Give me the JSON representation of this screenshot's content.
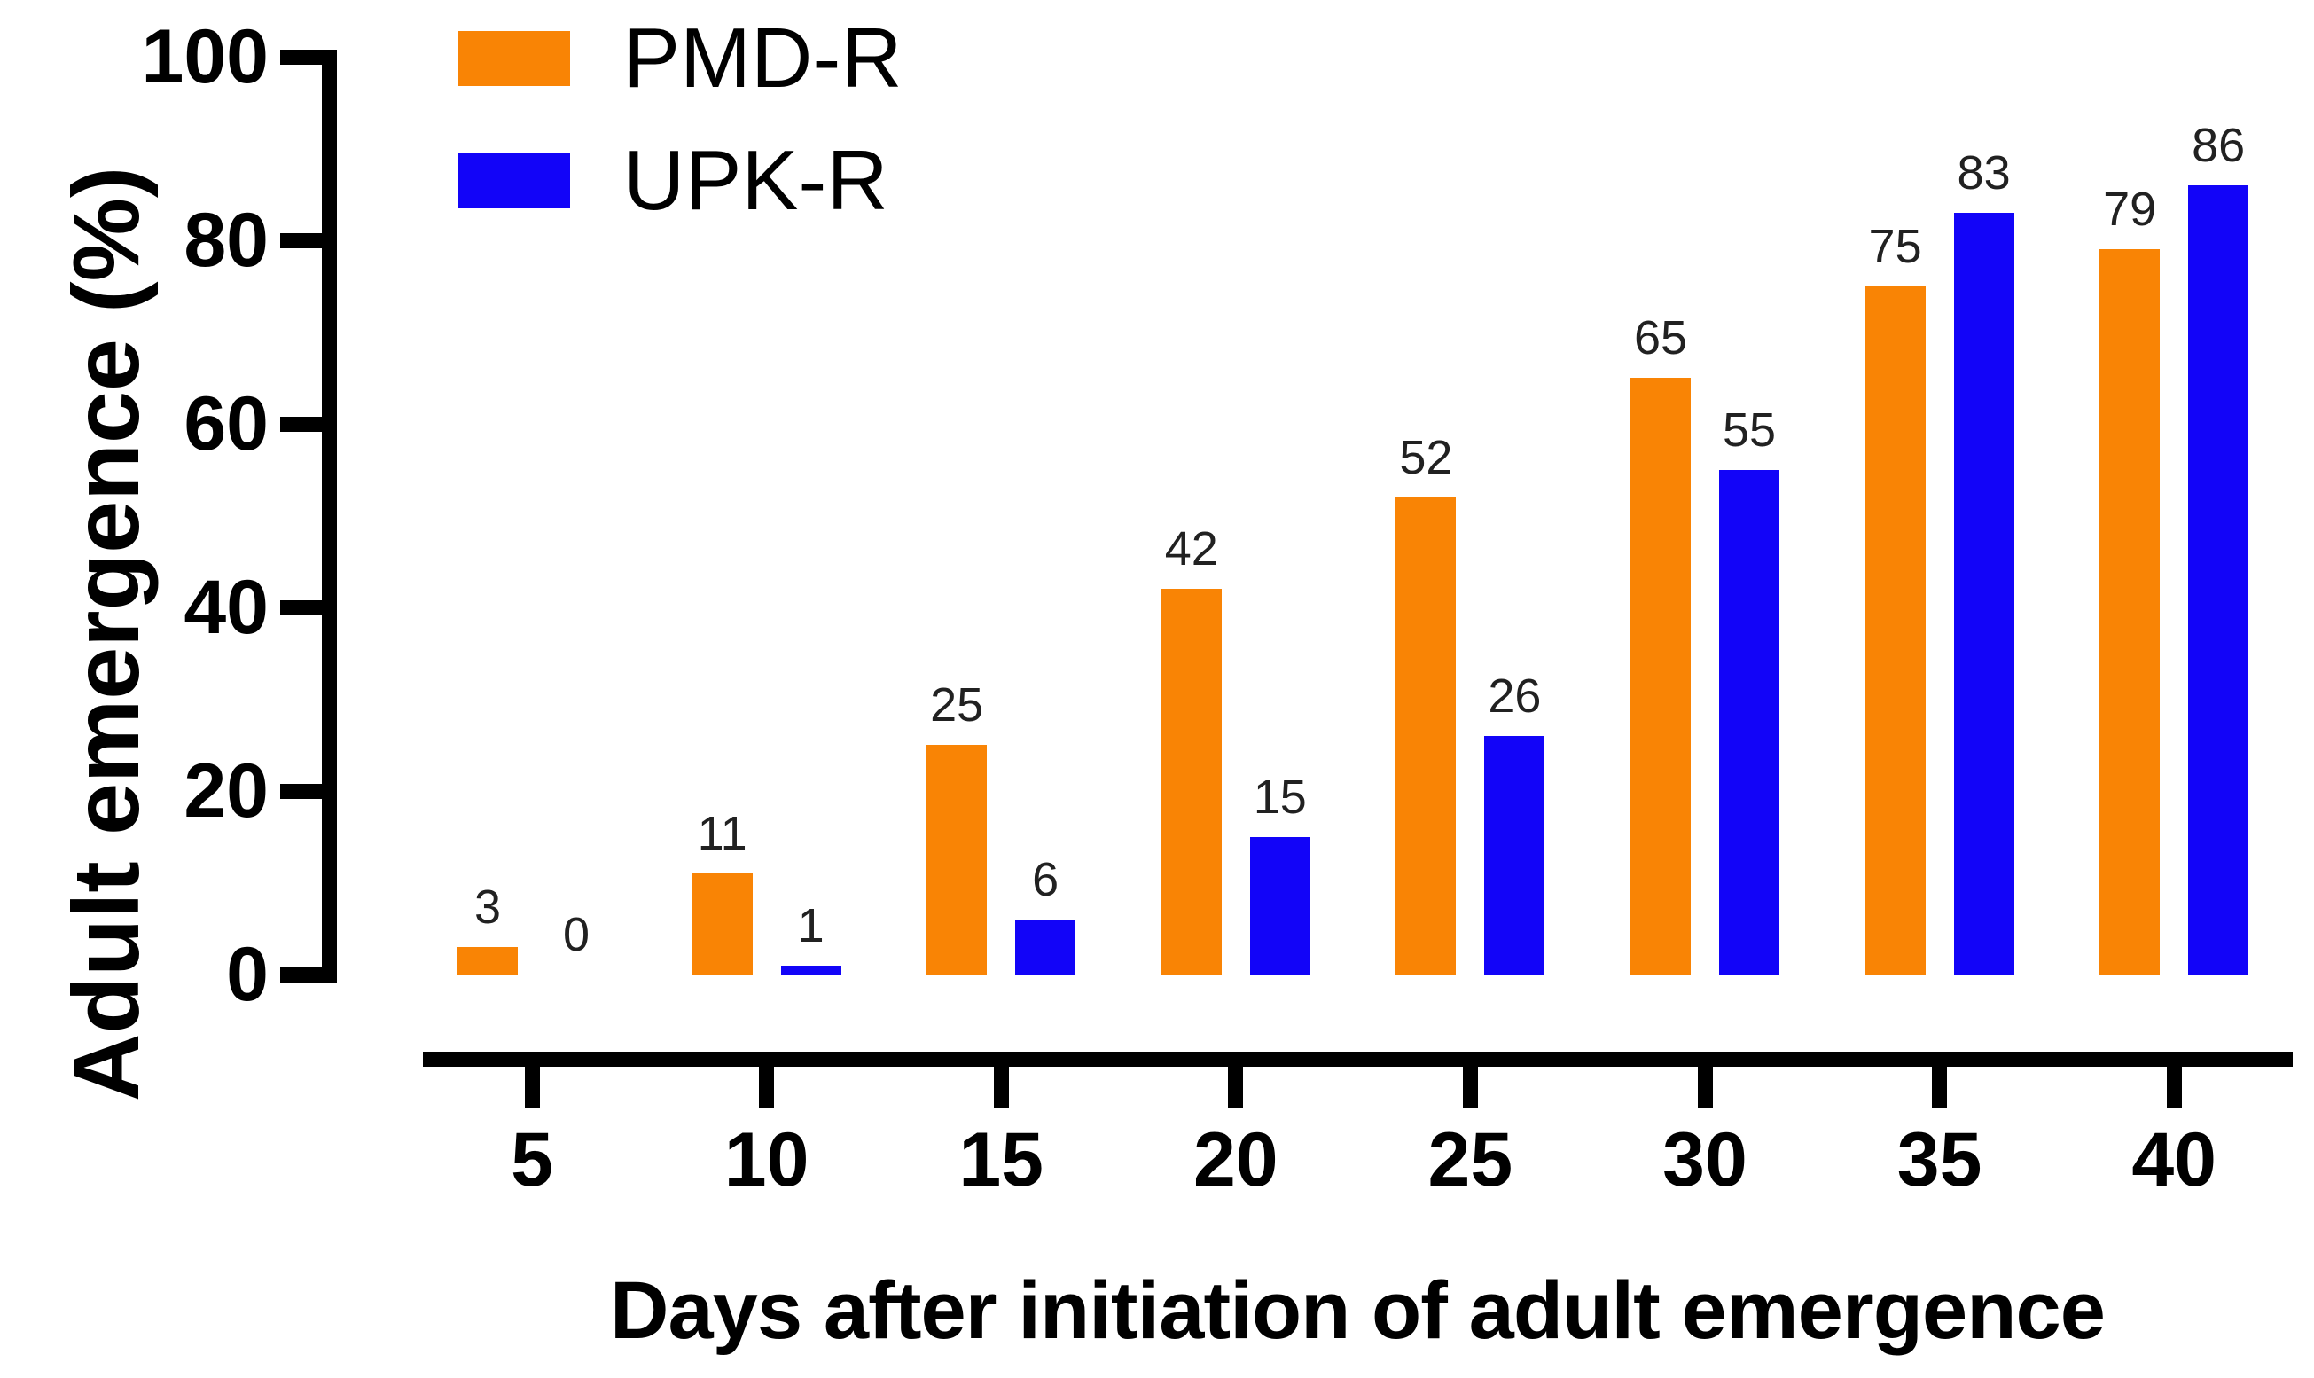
{
  "figure": {
    "background": "#FFFFFF"
  },
  "chart_data": {
    "type": "bar",
    "title": "",
    "xlabel": "Days after initiation of adult emergence",
    "ylabel": "Adult emergence (%)",
    "categories": [
      "5",
      "10",
      "15",
      "20",
      "25",
      "30",
      "35",
      "40"
    ],
    "series": [
      {
        "name": "PMD-R",
        "color": "#F98405",
        "values": [
          3,
          11,
          25,
          42,
          52,
          65,
          75,
          79
        ]
      },
      {
        "name": "UPK-R",
        "color": "#1204F8",
        "values": [
          0,
          1,
          6,
          15,
          26,
          55,
          83,
          86
        ]
      }
    ],
    "ylim": [
      0,
      100
    ],
    "yticks": [
      0,
      20,
      40,
      60,
      80,
      100
    ],
    "bar_value_labels": true,
    "grid": false,
    "legend_position": "top-left",
    "axis_color": "#000000",
    "value_label_color": "#212121"
  }
}
